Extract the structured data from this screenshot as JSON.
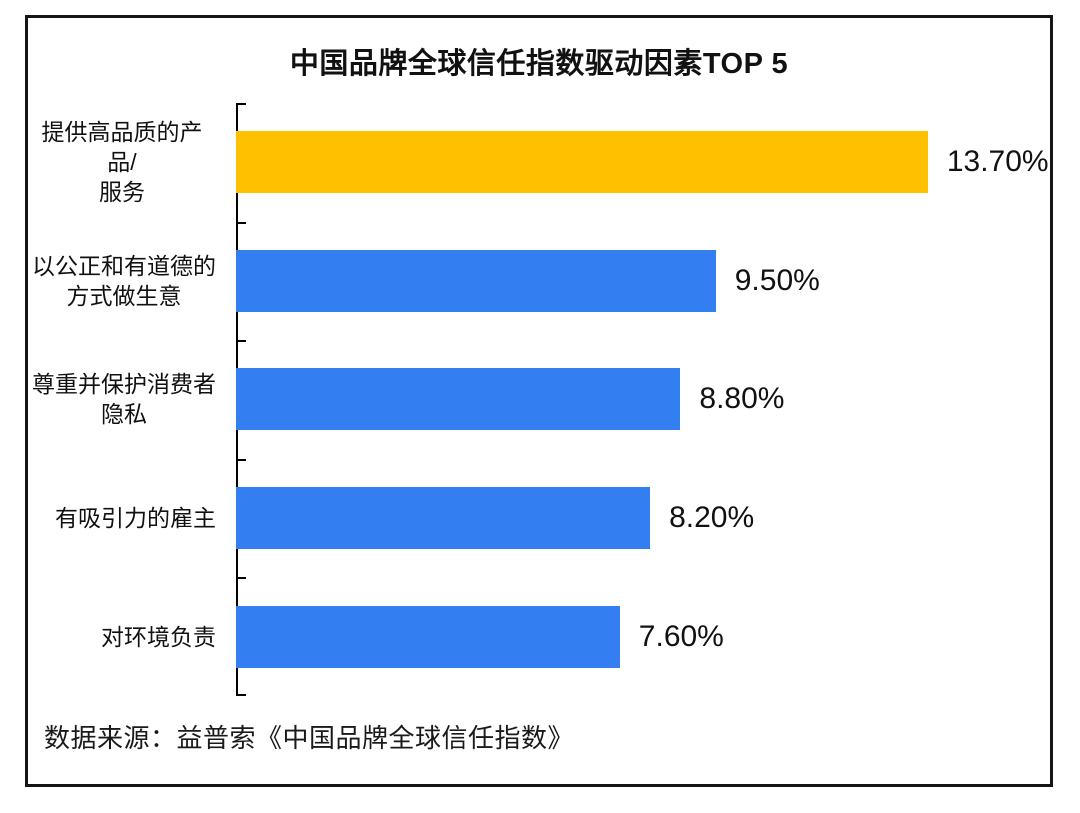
{
  "chart": {
    "title": "中国品牌全球信任指数驱动因素TOP 5",
    "source": "数据来源：益普索《中国品牌全球信任指数》"
  },
  "chart_data": {
    "type": "bar",
    "orientation": "horizontal",
    "title": "中国品牌全球信任指数驱动因素TOP 5",
    "categories": [
      "提供高品质的产品/服务",
      "以公正和有道德的方式做生意",
      "尊重并保护消费者隐私",
      "有吸引力的雇主",
      "对环境负责"
    ],
    "category_display_lines": [
      [
        "提供高品质的产品/",
        "服务"
      ],
      [
        "以公正和有道德的",
        "方式做生意"
      ],
      [
        "尊重并保护消费者",
        "隐私"
      ],
      [
        "有吸引力的雇主"
      ],
      [
        "对环境负责"
      ]
    ],
    "values": [
      13.7,
      9.5,
      8.8,
      8.2,
      7.6
    ],
    "value_labels": [
      "13.70%",
      "9.50%",
      "8.80%",
      "8.20%",
      "7.60%"
    ],
    "xlim": [
      0,
      16
    ],
    "bar_colors": [
      "#FFC000",
      "#337FF2",
      "#337FF2",
      "#337FF2",
      "#337FF2"
    ],
    "grid": false,
    "legend": false,
    "source": "数据来源：益普索《中国品牌全球信任指数》"
  },
  "colors": {
    "highlight_bar": "#FFC000",
    "default_bar": "#337FF2",
    "axis": "#000000",
    "frame_border": "#151515",
    "text": "#111111",
    "background": "#ffffff"
  }
}
